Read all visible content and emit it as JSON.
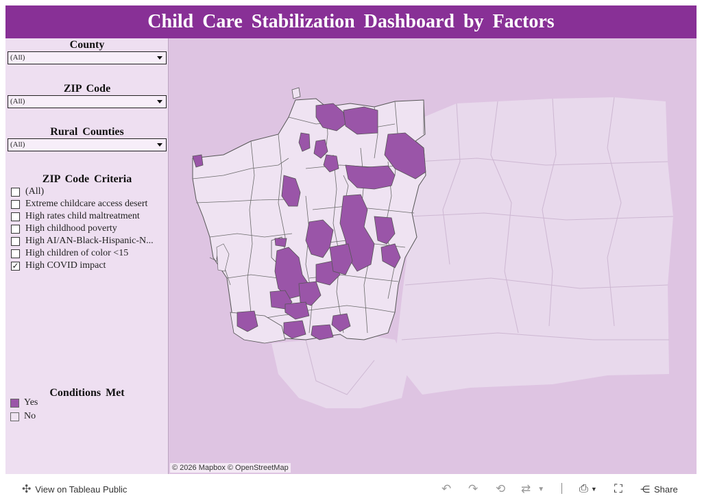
{
  "header": {
    "title": "Child Care Stabilization Dashboard by Factors"
  },
  "filters": {
    "county": {
      "label": "County",
      "value": "(All)"
    },
    "zip": {
      "label": "ZIP Code",
      "value": "(All)"
    },
    "rural": {
      "label": "Rural Counties",
      "value": "(All)"
    }
  },
  "criteria": {
    "title": "ZIP Code Criteria",
    "items": [
      {
        "label": "(All)",
        "checked": false
      },
      {
        "label": "Extreme childcare access desert",
        "checked": false
      },
      {
        "label": "High rates child maltreatment",
        "checked": false
      },
      {
        "label": "High childhood poverty",
        "checked": false
      },
      {
        "label": "High AI/AN-Black-Hispanic-N...",
        "checked": false
      },
      {
        "label": "High children of color <15",
        "checked": false
      },
      {
        "label": "High COVID impact",
        "checked": true
      }
    ]
  },
  "legend": {
    "title": "Conditions Met",
    "items": [
      {
        "label": "Yes",
        "color": "#9a55a8"
      },
      {
        "label": "No",
        "color": "#efe3f2"
      }
    ]
  },
  "map": {
    "attribution": "© 2026 Mapbox  © OpenStreetMap",
    "colors": {
      "background": "#dec4e2",
      "faded": "#e8d9ec",
      "no": "#efe3f2",
      "yes": "#9a55a8",
      "border": "#555555"
    }
  },
  "footer": {
    "view_label": "View on Tableau Public",
    "share_label": "Share",
    "icons": [
      "tableau-icon",
      "undo-icon",
      "redo-icon",
      "revert-icon",
      "refresh-icon",
      "download-icon",
      "fullscreen-icon",
      "share-icon"
    ]
  }
}
